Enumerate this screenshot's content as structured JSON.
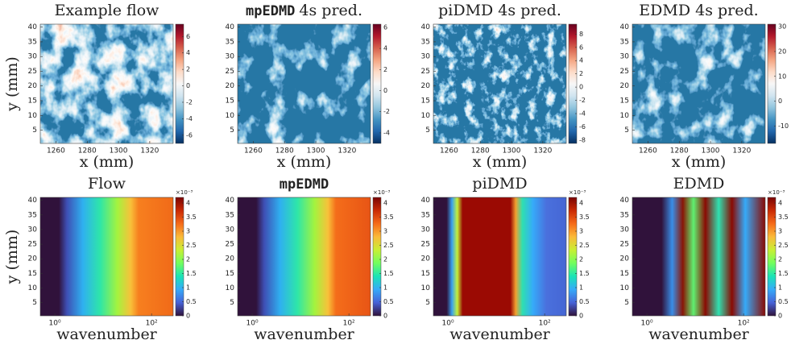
{
  "chart_data": [
    {
      "type": "heatmap",
      "title": "Example flow",
      "xlabel": "x (mm)",
      "ylabel": "y (mm)",
      "colormap": "RdBu",
      "xlim": [
        1250,
        1335
      ],
      "ylim": [
        0.5,
        41
      ],
      "xticks": [
        1260,
        1280,
        1300,
        1320
      ],
      "yticks": [
        5,
        10,
        15,
        20,
        25,
        30,
        35,
        40
      ],
      "clim": [
        -7,
        7.5
      ],
      "cticks": [
        -6,
        -4,
        -2,
        0,
        2,
        4,
        6
      ]
    },
    {
      "type": "heatmap",
      "title_code": "mpEDMD",
      "title": "4s pred.",
      "xlabel": "x (mm)",
      "colormap": "RdBu",
      "xlim": [
        1250,
        1335
      ],
      "ylim": [
        0.5,
        41
      ],
      "xticks": [
        1260,
        1280,
        1300,
        1320
      ],
      "yticks": [
        5,
        10,
        15,
        20,
        25,
        30,
        35,
        40
      ],
      "clim": [
        -5,
        6.3
      ],
      "cticks": [
        -4,
        -2,
        0,
        2,
        4,
        6
      ]
    },
    {
      "type": "heatmap",
      "title": "piDMD 4s pred.",
      "xlabel": "x (mm)",
      "colormap": "RdBu",
      "xlim": [
        1250,
        1335
      ],
      "ylim": [
        0.5,
        41
      ],
      "xticks": [
        1260,
        1280,
        1300,
        1320
      ],
      "yticks": [
        5,
        10,
        15,
        20,
        25,
        30,
        35,
        40
      ],
      "clim": [
        -8.5,
        9.5
      ],
      "cticks": [
        -8,
        -6,
        -4,
        -2,
        0,
        2,
        4,
        6,
        8
      ]
    },
    {
      "type": "heatmap",
      "title": "EDMD 4s pred.",
      "xlabel": "x (mm)",
      "colormap": "RdBu",
      "xlim": [
        1250,
        1335
      ],
      "ylim": [
        0.5,
        41
      ],
      "xticks": [
        1260,
        1280,
        1300,
        1320
      ],
      "yticks": [
        5,
        10,
        15,
        20,
        25,
        30,
        35,
        40
      ],
      "clim": [
        -17,
        31
      ],
      "cticks": [
        -10,
        0,
        10,
        20,
        30
      ]
    },
    {
      "type": "heatmap",
      "title": "Flow",
      "xlabel": "wavenumber",
      "ylabel": "y (mm)",
      "colormap": "turbo",
      "xscale": "log",
      "xlim": [
        0.5,
        280
      ],
      "ylim": [
        0.5,
        41
      ],
      "xticks": [
        {
          "value": 1,
          "label": "10⁰"
        },
        {
          "value": 100,
          "label": "10²"
        }
      ],
      "yticks": [
        5,
        10,
        15,
        20,
        25,
        30,
        35,
        40
      ],
      "clim": [
        0,
        4.2
      ],
      "cticks": [
        0,
        0.5,
        1,
        1.5,
        2,
        2.5,
        3,
        3.5,
        4
      ],
      "cbar_offset_label": "×10⁻³"
    },
    {
      "type": "heatmap",
      "title_code": "mpEDMD",
      "xlabel": "wavenumber",
      "colormap": "turbo",
      "xscale": "log",
      "xlim": [
        0.5,
        280
      ],
      "ylim": [
        0.5,
        41
      ],
      "xticks": [
        {
          "value": 1,
          "label": "10⁰"
        },
        {
          "value": 100,
          "label": "10²"
        }
      ],
      "yticks": [
        5,
        10,
        15,
        20,
        25,
        30,
        35,
        40
      ],
      "clim": [
        0,
        4.2
      ],
      "cticks": [
        0,
        0.5,
        1,
        1.5,
        2,
        2.5,
        3,
        3.5,
        4
      ],
      "cbar_offset_label": "×10⁻³"
    },
    {
      "type": "heatmap",
      "title": "piDMD",
      "xlabel": "wavenumber",
      "colormap": "turbo",
      "xscale": "log",
      "xlim": [
        0.5,
        280
      ],
      "ylim": [
        0.5,
        41
      ],
      "xticks": [
        {
          "value": 1,
          "label": "10⁰"
        },
        {
          "value": 100,
          "label": "10²"
        }
      ],
      "yticks": [
        5,
        10,
        15,
        20,
        25,
        30,
        35,
        40
      ],
      "clim": [
        0,
        4.2
      ],
      "cticks": [
        0,
        0.5,
        1,
        1.5,
        2,
        2.5,
        3,
        3.5,
        4
      ],
      "cbar_offset_label": "×10⁻³"
    },
    {
      "type": "heatmap",
      "title": "EDMD",
      "xlabel": "wavenumber",
      "colormap": "turbo",
      "xscale": "log",
      "xlim": [
        0.5,
        280
      ],
      "ylim": [
        0.5,
        41
      ],
      "xticks": [
        {
          "value": 1,
          "label": "10⁰"
        },
        {
          "value": 100,
          "label": "10²"
        }
      ],
      "yticks": [
        5,
        10,
        15,
        20,
        25,
        30,
        35,
        40
      ],
      "clim": [
        0,
        4.2
      ],
      "cticks": [
        0,
        0.5,
        1,
        1.5,
        2,
        2.5,
        3,
        3.5,
        4
      ],
      "cbar_offset_label": "×10⁻³"
    }
  ]
}
